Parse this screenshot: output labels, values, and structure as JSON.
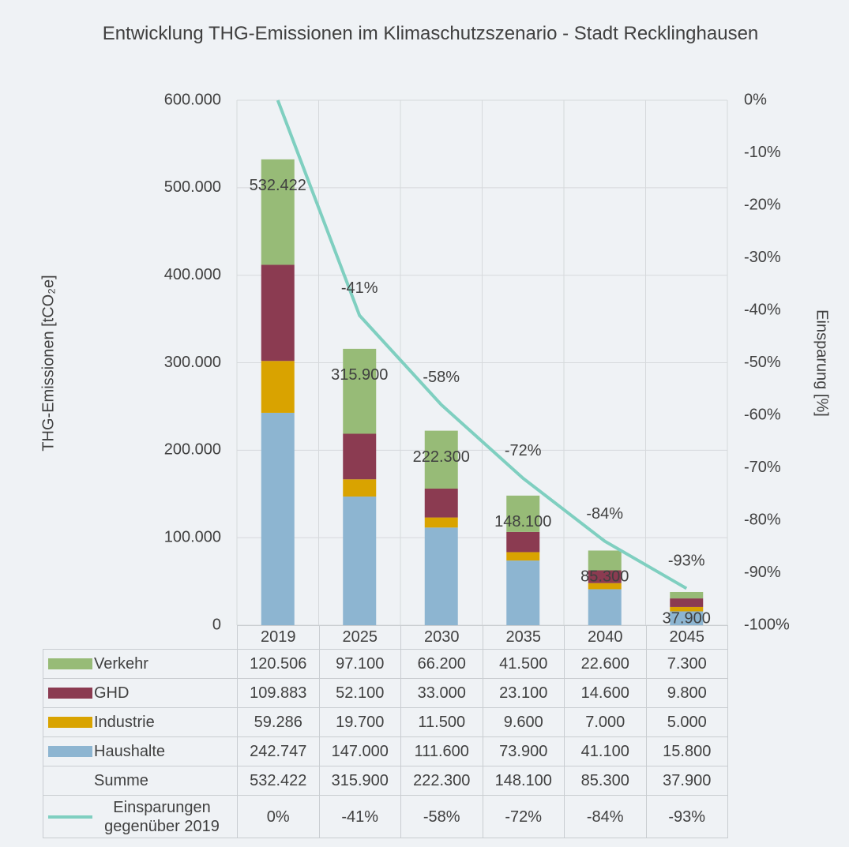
{
  "chart_data": {
    "type": "bar",
    "title": "Entwicklung THG-Emissionen im Klimaschutzszenario - Stadt Recklinghausen",
    "y_label": "THG-Emissionen [tCO₂e]",
    "y2_label": "Einsparung [%]",
    "categories": [
      "2019",
      "2025",
      "2030",
      "2035",
      "2040",
      "2045"
    ],
    "stacked": true,
    "grid": true,
    "series": [
      {
        "name": "Verkehr",
        "color": "#97bb77",
        "values": [
          120506,
          97100,
          66200,
          41500,
          22600,
          7300
        ],
        "value_labels": [
          "120.506",
          "97.100",
          "66.200",
          "41.500",
          "22.600",
          "7.300"
        ]
      },
      {
        "name": "GHD",
        "color": "#8b3b51",
        "values": [
          109883,
          52100,
          33000,
          23100,
          14600,
          9800
        ],
        "value_labels": [
          "109.883",
          "52.100",
          "33.000",
          "23.100",
          "14.600",
          "9.800"
        ]
      },
      {
        "name": "Industrie",
        "color": "#d9a300",
        "values": [
          59286,
          19700,
          11500,
          9600,
          7000,
          5000
        ],
        "value_labels": [
          "59.286",
          "19.700",
          "11.500",
          "9.600",
          "7.000",
          "5.000"
        ]
      },
      {
        "name": "Haushalte",
        "color": "#8db5d1",
        "values": [
          242747,
          147000,
          111600,
          73900,
          41100,
          15800
        ],
        "value_labels": [
          "242.747",
          "147.000",
          "111.600",
          "73.900",
          "41.100",
          "15.800"
        ]
      },
      {
        "name": "Einsparungen gegenüber 2019",
        "type": "line",
        "axis": "y2",
        "color": "#7fcfc0",
        "values": [
          0,
          -41,
          -58,
          -72,
          -84,
          -93
        ],
        "value_labels": [
          "0%",
          "-41%",
          "-58%",
          "-72%",
          "-84%",
          "-93%"
        ]
      }
    ],
    "totals": {
      "name": "Summe",
      "values": [
        532422,
        315900,
        222300,
        148100,
        85300,
        37900
      ],
      "value_labels": [
        "532.422",
        "315.900",
        "222.300",
        "148.100",
        "85.300",
        "37.900"
      ]
    },
    "ylim": [
      0,
      600000
    ],
    "yticks": [
      0,
      {
        "value": 100000,
        "label": "100.000"
      },
      {
        "value": 200000,
        "label": "200.000"
      },
      {
        "value": 300000,
        "label": "300.000"
      },
      {
        "value": 400000,
        "label": "400.000"
      },
      {
        "value": 500000,
        "label": "500.000"
      },
      {
        "value": 600000,
        "label": "600.000"
      }
    ],
    "y2lim": [
      -100,
      0
    ],
    "y2ticks": [
      {
        "value": 0,
        "label": "0%"
      },
      {
        "value": -10,
        "label": "-10%"
      },
      {
        "value": -20,
        "label": "-20%"
      },
      {
        "value": -30,
        "label": "-30%"
      },
      {
        "value": -40,
        "label": "-40%"
      },
      {
        "value": -50,
        "label": "-50%"
      },
      {
        "value": -60,
        "label": "-60%"
      },
      {
        "value": -70,
        "label": "-70%"
      },
      {
        "value": -80,
        "label": "-80%"
      },
      {
        "value": -90,
        "label": "-90%"
      },
      {
        "value": -100,
        "label": "-100%"
      }
    ]
  }
}
